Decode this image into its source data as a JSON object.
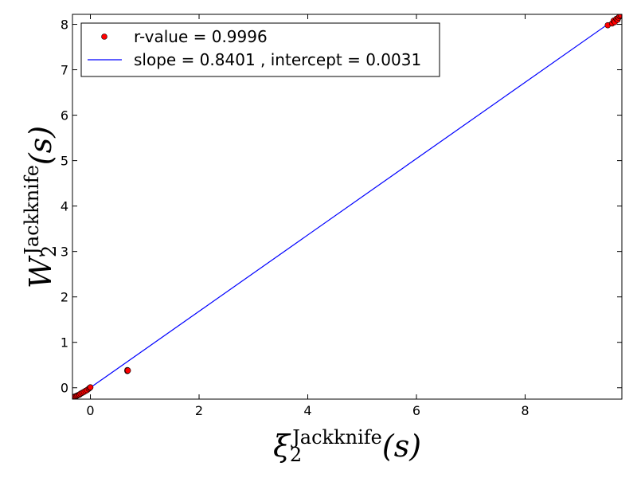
{
  "chart_data": {
    "type": "scatter",
    "xlabel": {
      "base": "ξ",
      "sub": "2",
      "sup": "Jackknife",
      "arg": "(s)"
    },
    "ylabel": {
      "base": "W",
      "sub": "2",
      "sup": "Jackknife",
      "arg": "(s)"
    },
    "xlim": [
      -0.33,
      9.78
    ],
    "ylim": [
      -0.25,
      8.22
    ],
    "xticks": [
      0,
      2,
      4,
      6,
      8
    ],
    "yticks": [
      0,
      1,
      2,
      3,
      4,
      5,
      6,
      7,
      8
    ],
    "grid": false,
    "legend_position": "top-left",
    "series": [
      {
        "name": "r-value = 0.9996",
        "kind": "scatter",
        "color": "#ff0000",
        "edge_color": "#000000",
        "points": [
          [
            -0.32,
            -0.21
          ],
          [
            -0.3,
            -0.2
          ],
          [
            -0.28,
            -0.19
          ],
          [
            -0.26,
            -0.18
          ],
          [
            -0.24,
            -0.17
          ],
          [
            -0.22,
            -0.16
          ],
          [
            -0.2,
            -0.15
          ],
          [
            -0.18,
            -0.13
          ],
          [
            -0.15,
            -0.11
          ],
          [
            -0.12,
            -0.09
          ],
          [
            -0.09,
            -0.07
          ],
          [
            -0.06,
            -0.05
          ],
          [
            -0.03,
            -0.02
          ],
          [
            -0.01,
            0.0
          ],
          [
            0.0,
            0.01
          ],
          [
            0.68,
            0.37
          ],
          [
            0.68,
            0.39
          ],
          [
            0.69,
            0.38
          ],
          [
            9.52,
            7.98
          ],
          [
            9.6,
            8.02
          ],
          [
            9.63,
            8.08
          ],
          [
            9.65,
            8.05
          ],
          [
            9.68,
            8.12
          ],
          [
            9.7,
            8.1
          ],
          [
            9.72,
            8.15
          ],
          [
            9.74,
            8.18
          ],
          [
            9.76,
            8.2
          ]
        ]
      },
      {
        "name": "slope = 0.8401 , intercept = 0.0031",
        "kind": "line",
        "color": "#0000ff",
        "slope": 0.8401,
        "intercept": 0.0031
      }
    ]
  }
}
